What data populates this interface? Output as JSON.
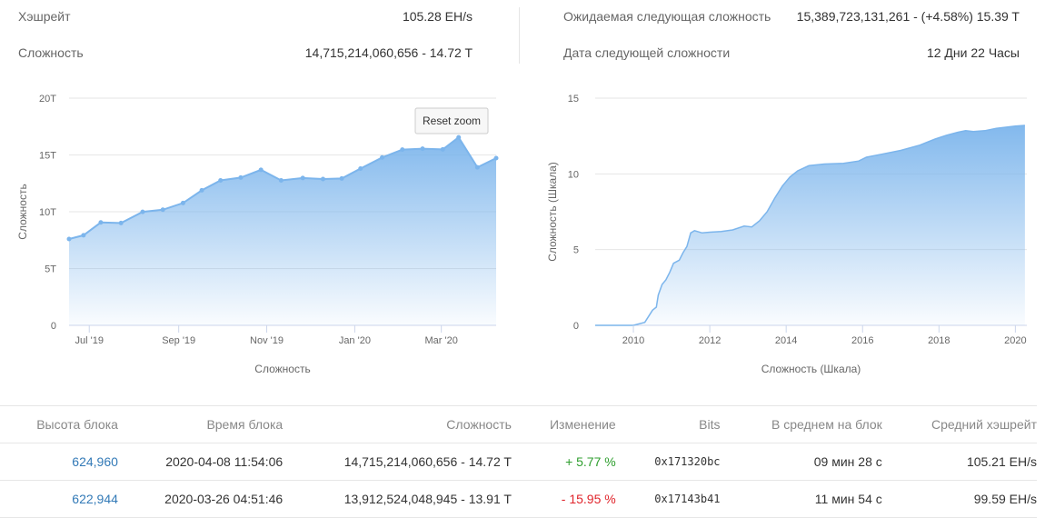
{
  "stats": {
    "hashrate": {
      "label": "Хэшрейт",
      "value": "105.28 EH/s"
    },
    "difficulty": {
      "label": "Сложность",
      "value": "14,715,214,060,656 - 14.72 T"
    },
    "next_difficulty": {
      "label": "Ожидаемая следующая сложность",
      "value": "15,389,723,131,261 - (+4.58%) 15.39 T"
    },
    "next_date": {
      "label": "Дата следующей сложности",
      "value": "12 Дни 22 Часы"
    }
  },
  "reset_zoom_label": "Reset zoom",
  "chart_data": [
    {
      "type": "area",
      "title": "",
      "xlabel": "Сложность",
      "ylabel": "Сложность",
      "ylim": [
        0,
        20
      ],
      "yticks": [
        0,
        5,
        10,
        15,
        20
      ],
      "ytick_labels": [
        "0",
        "5T",
        "10T",
        "15T",
        "20T"
      ],
      "xlim": [
        "2019-06-17",
        "2020-04-08"
      ],
      "xticks": [
        "2019-07-01",
        "2019-09-01",
        "2019-11-01",
        "2020-01-01",
        "2020-03-01"
      ],
      "xtick_labels": [
        "Jul '19",
        "Sep '19",
        "Nov '19",
        "Jan '20",
        "Mar '20"
      ],
      "grid": true,
      "color": "#7cb5ec",
      "points": [
        {
          "x": "2019-06-17",
          "y": 7.6
        },
        {
          "x": "2019-06-27",
          "y": 7.93
        },
        {
          "x": "2019-07-09",
          "y": 9.06
        },
        {
          "x": "2019-07-23",
          "y": 9.01
        },
        {
          "x": "2019-08-07",
          "y": 9.99
        },
        {
          "x": "2019-08-21",
          "y": 10.18
        },
        {
          "x": "2019-09-04",
          "y": 10.77
        },
        {
          "x": "2019-09-17",
          "y": 11.89
        },
        {
          "x": "2019-09-30",
          "y": 12.76
        },
        {
          "x": "2019-10-14",
          "y": 13.01
        },
        {
          "x": "2019-10-28",
          "y": 13.69
        },
        {
          "x": "2019-11-11",
          "y": 12.76
        },
        {
          "x": "2019-11-26",
          "y": 12.97
        },
        {
          "x": "2019-12-10",
          "y": 12.88
        },
        {
          "x": "2019-12-23",
          "y": 12.93
        },
        {
          "x": "2020-01-05",
          "y": 13.8
        },
        {
          "x": "2020-01-20",
          "y": 14.78
        },
        {
          "x": "2020-02-03",
          "y": 15.47
        },
        {
          "x": "2020-02-17",
          "y": 15.55
        },
        {
          "x": "2020-03-02",
          "y": 15.49
        },
        {
          "x": "2020-03-13",
          "y": 16.55
        },
        {
          "x": "2020-03-26",
          "y": 13.91
        },
        {
          "x": "2020-04-08",
          "y": 14.72
        }
      ]
    },
    {
      "type": "area",
      "title": "",
      "xlabel": "Сложность (Шкала)",
      "ylabel": "Сложность (Шкала)",
      "ylim": [
        0,
        15
      ],
      "yticks": [
        0,
        5,
        10,
        15
      ],
      "ytick_labels": [
        "0",
        "5",
        "10",
        "15"
      ],
      "xlim": [
        2009.0,
        2020.3
      ],
      "xticks": [
        2010,
        2012,
        2014,
        2016,
        2018,
        2020
      ],
      "xtick_labels": [
        "2010",
        "2012",
        "2014",
        "2016",
        "2018",
        "2020"
      ],
      "grid": true,
      "color": "#7cb5ec",
      "points": [
        [
          2009.0,
          0
        ],
        [
          2010.0,
          0
        ],
        [
          2010.3,
          0.2
        ],
        [
          2010.5,
          1.0
        ],
        [
          2010.6,
          1.2
        ],
        [
          2010.65,
          2.0
        ],
        [
          2010.75,
          2.7
        ],
        [
          2010.85,
          3.0
        ],
        [
          2010.95,
          3.5
        ],
        [
          2011.05,
          4.1
        ],
        [
          2011.2,
          4.3
        ],
        [
          2011.3,
          4.8
        ],
        [
          2011.4,
          5.2
        ],
        [
          2011.5,
          6.1
        ],
        [
          2011.6,
          6.25
        ],
        [
          2011.8,
          6.1
        ],
        [
          2012.0,
          6.15
        ],
        [
          2012.3,
          6.2
        ],
        [
          2012.6,
          6.3
        ],
        [
          2012.9,
          6.55
        ],
        [
          2013.1,
          6.5
        ],
        [
          2013.3,
          6.9
        ],
        [
          2013.5,
          7.5
        ],
        [
          2013.7,
          8.4
        ],
        [
          2013.9,
          9.2
        ],
        [
          2014.1,
          9.8
        ],
        [
          2014.3,
          10.2
        ],
        [
          2014.6,
          10.55
        ],
        [
          2015.0,
          10.65
        ],
        [
          2015.5,
          10.7
        ],
        [
          2015.9,
          10.85
        ],
        [
          2016.1,
          11.1
        ],
        [
          2016.5,
          11.3
        ],
        [
          2017.0,
          11.55
        ],
        [
          2017.5,
          11.9
        ],
        [
          2017.9,
          12.3
        ],
        [
          2018.2,
          12.55
        ],
        [
          2018.5,
          12.75
        ],
        [
          2018.7,
          12.85
        ],
        [
          2018.9,
          12.8
        ],
        [
          2019.2,
          12.85
        ],
        [
          2019.5,
          13.0
        ],
        [
          2019.8,
          13.1
        ],
        [
          2020.0,
          13.15
        ],
        [
          2020.25,
          13.2
        ]
      ]
    }
  ],
  "table": {
    "headers": [
      "Высота блока",
      "Время блока",
      "Сложность",
      "Изменение",
      "Bits",
      "В среднем на блок",
      "Средний хэшрейт"
    ],
    "rows": [
      {
        "height": "624,960",
        "time": "2020-04-08 11:54:06",
        "difficulty": "14,715,214,060,656 - 14.72 T",
        "change": "+ 5.77 %",
        "bits": "0x171320bc",
        "avg_block": "09 мин 28 с",
        "avg_hashrate": "105.21 EH/s"
      },
      {
        "height": "622,944",
        "time": "2020-03-26 04:51:46",
        "difficulty": "13,912,524,048,945 - 13.91 T",
        "change": "- 15.95 %",
        "bits": "0x17143b41",
        "avg_block": "11 мин 54 с",
        "avg_hashrate": "99.59 EH/s"
      }
    ]
  }
}
